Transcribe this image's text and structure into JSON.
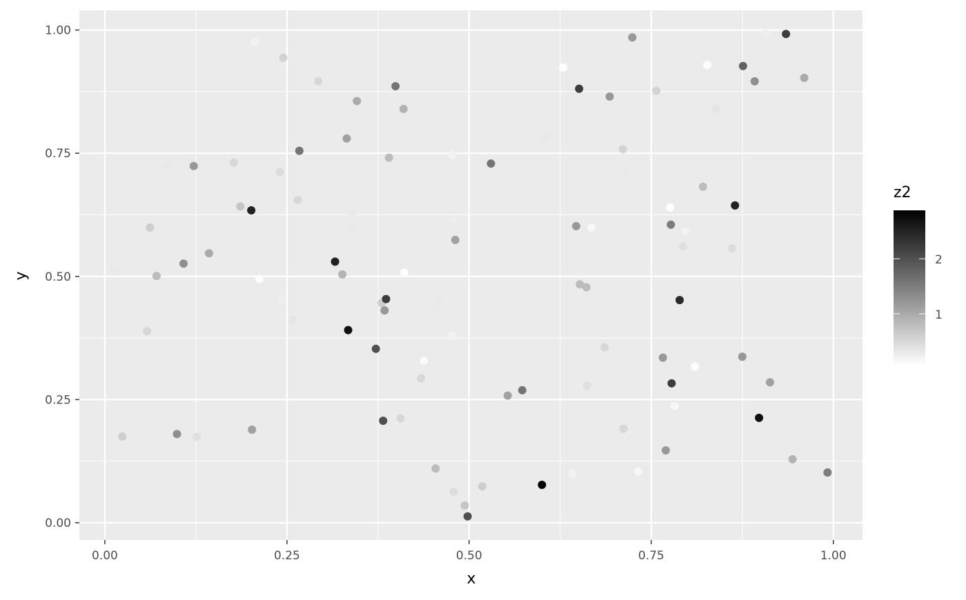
{
  "chart_data": {
    "type": "scatter",
    "xlabel": "x",
    "ylabel": "y",
    "xlim": [
      -0.035,
      1.04
    ],
    "ylim": [
      -0.035,
      1.04
    ],
    "x_ticks": [
      0,
      0.25,
      0.5,
      0.75,
      1
    ],
    "x_tick_labels": [
      "0.00",
      "0.25",
      "0.50",
      "0.75",
      "1.00"
    ],
    "y_ticks": [
      0,
      0.25,
      0.5,
      0.75,
      1
    ],
    "y_tick_labels": [
      "0.00",
      "0.25",
      "0.50",
      "0.75",
      "1.00"
    ],
    "grid": true,
    "legend": {
      "title": "z2",
      "placement": "right",
      "type": "colorbar",
      "range": [
        0.06,
        2.88
      ],
      "ticks": [
        1,
        2
      ],
      "tick_labels": [
        "1",
        "2"
      ],
      "low_color": "#FFFFFF",
      "high_color": "#000000"
    },
    "colors": {
      "panel": "#EBEBEB",
      "grid": "#FFFFFF",
      "tick_text": "#4D4D4D"
    },
    "points": [
      {
        "x": 0.013,
        "y": 0.511,
        "z2": 0.3
      },
      {
        "x": 0.024,
        "y": 0.175,
        "z2": 0.6
      },
      {
        "x": 0.058,
        "y": 0.389,
        "z2": 0.5
      },
      {
        "x": 0.062,
        "y": 0.599,
        "z2": 0.6
      },
      {
        "x": 0.071,
        "y": 0.501,
        "z2": 0.8
      },
      {
        "x": 0.084,
        "y": 0.724,
        "z2": 0.3
      },
      {
        "x": 0.099,
        "y": 0.18,
        "z2": 1.3
      },
      {
        "x": 0.108,
        "y": 0.526,
        "z2": 1.3
      },
      {
        "x": 0.122,
        "y": 0.724,
        "z2": 1.2
      },
      {
        "x": 0.126,
        "y": 0.174,
        "z2": 0.4
      },
      {
        "x": 0.143,
        "y": 0.547,
        "z2": 1.0
      },
      {
        "x": 0.177,
        "y": 0.731,
        "z2": 0.5
      },
      {
        "x": 0.186,
        "y": 0.642,
        "z2": 0.7
      },
      {
        "x": 0.201,
        "y": 0.634,
        "z2": 2.5
      },
      {
        "x": 0.202,
        "y": 0.189,
        "z2": 1.1
      },
      {
        "x": 0.206,
        "y": 0.976,
        "z2": 0.2
      },
      {
        "x": 0.212,
        "y": 0.495,
        "z2": 0.07
      },
      {
        "x": 0.24,
        "y": 0.712,
        "z2": 0.45
      },
      {
        "x": 0.244,
        "y": 0.454,
        "z2": 0.25
      },
      {
        "x": 0.245,
        "y": 0.944,
        "z2": 0.55
      },
      {
        "x": 0.258,
        "y": 0.412,
        "z2": 0.35
      },
      {
        "x": 0.265,
        "y": 0.655,
        "z2": 0.5
      },
      {
        "x": 0.267,
        "y": 0.755,
        "z2": 1.6
      },
      {
        "x": 0.293,
        "y": 0.896,
        "z2": 0.5
      },
      {
        "x": 0.316,
        "y": 0.53,
        "z2": 2.5
      },
      {
        "x": 0.326,
        "y": 0.504,
        "z2": 0.9
      },
      {
        "x": 0.332,
        "y": 0.78,
        "z2": 1.1
      },
      {
        "x": 0.334,
        "y": 0.391,
        "z2": 2.7
      },
      {
        "x": 0.339,
        "y": 0.629,
        "z2": 0.3
      },
      {
        "x": 0.341,
        "y": 0.596,
        "z2": 0.3
      },
      {
        "x": 0.346,
        "y": 0.856,
        "z2": 1.0
      },
      {
        "x": 0.372,
        "y": 0.353,
        "z2": 2.0
      },
      {
        "x": 0.38,
        "y": 0.446,
        "z2": 0.6
      },
      {
        "x": 0.382,
        "y": 0.207,
        "z2": 2.0
      },
      {
        "x": 0.384,
        "y": 0.431,
        "z2": 1.2
      },
      {
        "x": 0.386,
        "y": 0.454,
        "z2": 2.2
      },
      {
        "x": 0.39,
        "y": 0.741,
        "z2": 0.8
      },
      {
        "x": 0.399,
        "y": 0.886,
        "z2": 1.6
      },
      {
        "x": 0.406,
        "y": 0.212,
        "z2": 0.5
      },
      {
        "x": 0.41,
        "y": 0.84,
        "z2": 0.9
      },
      {
        "x": 0.411,
        "y": 0.508,
        "z2": 0.07
      },
      {
        "x": 0.434,
        "y": 0.293,
        "z2": 0.5
      },
      {
        "x": 0.438,
        "y": 0.329,
        "z2": 0.12
      },
      {
        "x": 0.454,
        "y": 0.11,
        "z2": 0.8
      },
      {
        "x": 0.459,
        "y": 0.446,
        "z2": 0.3
      },
      {
        "x": 0.477,
        "y": 0.747,
        "z2": 0.2
      },
      {
        "x": 0.478,
        "y": 0.614,
        "z2": 0.25
      },
      {
        "x": 0.477,
        "y": 0.38,
        "z2": 0.2
      },
      {
        "x": 0.479,
        "y": 0.063,
        "z2": 0.45
      },
      {
        "x": 0.481,
        "y": 0.574,
        "z2": 1.1
      },
      {
        "x": 0.494,
        "y": 0.035,
        "z2": 0.7
      },
      {
        "x": 0.498,
        "y": 0.013,
        "z2": 2.0
      },
      {
        "x": 0.518,
        "y": 0.074,
        "z2": 0.6
      },
      {
        "x": 0.53,
        "y": 0.729,
        "z2": 1.6
      },
      {
        "x": 0.553,
        "y": 0.258,
        "z2": 1.1
      },
      {
        "x": 0.573,
        "y": 0.269,
        "z2": 1.6
      },
      {
        "x": 0.6,
        "y": 0.077,
        "z2": 2.85
      },
      {
        "x": 0.605,
        "y": 0.783,
        "z2": 0.3
      },
      {
        "x": 0.629,
        "y": 0.924,
        "z2": 0.07
      },
      {
        "x": 0.642,
        "y": 0.1,
        "z2": 0.2
      },
      {
        "x": 0.647,
        "y": 0.602,
        "z2": 1.2
      },
      {
        "x": 0.651,
        "y": 0.881,
        "z2": 2.2
      },
      {
        "x": 0.652,
        "y": 0.484,
        "z2": 0.8
      },
      {
        "x": 0.661,
        "y": 0.478,
        "z2": 0.8
      },
      {
        "x": 0.662,
        "y": 0.278,
        "z2": 0.4
      },
      {
        "x": 0.668,
        "y": 0.599,
        "z2": 0.15
      },
      {
        "x": 0.686,
        "y": 0.356,
        "z2": 0.5
      },
      {
        "x": 0.693,
        "y": 0.865,
        "z2": 1.2
      },
      {
        "x": 0.711,
        "y": 0.758,
        "z2": 0.55
      },
      {
        "x": 0.712,
        "y": 0.191,
        "z2": 0.5
      },
      {
        "x": 0.717,
        "y": 0.715,
        "z2": 0.3
      },
      {
        "x": 0.724,
        "y": 0.985,
        "z2": 1.2
      },
      {
        "x": 0.732,
        "y": 0.104,
        "z2": 0.15
      },
      {
        "x": 0.757,
        "y": 0.877,
        "z2": 0.55
      },
      {
        "x": 0.766,
        "y": 0.335,
        "z2": 1.2
      },
      {
        "x": 0.77,
        "y": 0.147,
        "z2": 1.2
      },
      {
        "x": 0.776,
        "y": 0.64,
        "z2": 0.07
      },
      {
        "x": 0.777,
        "y": 0.605,
        "z2": 1.5
      },
      {
        "x": 0.778,
        "y": 0.283,
        "z2": 2.2
      },
      {
        "x": 0.782,
        "y": 0.237,
        "z2": 0.15
      },
      {
        "x": 0.789,
        "y": 0.452,
        "z2": 2.4
      },
      {
        "x": 0.794,
        "y": 0.561,
        "z2": 0.4
      },
      {
        "x": 0.797,
        "y": 0.591,
        "z2": 0.2
      },
      {
        "x": 0.81,
        "y": 0.317,
        "z2": 0.08
      },
      {
        "x": 0.821,
        "y": 0.682,
        "z2": 0.8
      },
      {
        "x": 0.827,
        "y": 0.929,
        "z2": 0.08
      },
      {
        "x": 0.839,
        "y": 0.84,
        "z2": 0.35
      },
      {
        "x": 0.861,
        "y": 0.557,
        "z2": 0.45
      },
      {
        "x": 0.865,
        "y": 0.644,
        "z2": 2.5
      },
      {
        "x": 0.875,
        "y": 0.337,
        "z2": 1.2
      },
      {
        "x": 0.876,
        "y": 0.927,
        "z2": 1.8
      },
      {
        "x": 0.892,
        "y": 0.896,
        "z2": 1.3
      },
      {
        "x": 0.898,
        "y": 0.213,
        "z2": 2.7
      },
      {
        "x": 0.907,
        "y": 0.992,
        "z2": 0.25
      },
      {
        "x": 0.913,
        "y": 0.285,
        "z2": 1.1
      },
      {
        "x": 0.935,
        "y": 0.992,
        "z2": 2.2
      },
      {
        "x": 0.944,
        "y": 0.129,
        "z2": 0.9
      },
      {
        "x": 0.96,
        "y": 0.903,
        "z2": 1.0
      },
      {
        "x": 0.992,
        "y": 0.102,
        "z2": 1.5
      }
    ]
  }
}
